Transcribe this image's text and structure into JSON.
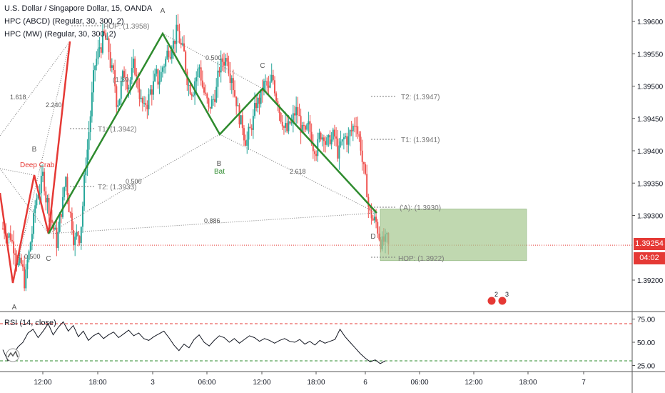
{
  "legend": {
    "symbol": "U.S. Dollar / Singapore Dollar, 15, OANDA",
    "hpc_abcd": "HPC (ABCD) (Regular, 30, 300, 2)",
    "hpc_mw": "HPC (MW) (Regular, 30, 300, 2)"
  },
  "rsi": {
    "label": "RSI (14, close)",
    "levels": {
      "upper": 70,
      "lower": 30
    },
    "ticks": [
      "75.00",
      "50.00",
      "25.00"
    ],
    "values": [
      42,
      30,
      36,
      45,
      50,
      60,
      64,
      55,
      62,
      70,
      58,
      66,
      72,
      62,
      68,
      56,
      62,
      52,
      57,
      60,
      54,
      58,
      61,
      55,
      59,
      63,
      57,
      60,
      54,
      52,
      56,
      59,
      62,
      55,
      47,
      41,
      48,
      44,
      53,
      58,
      50,
      46,
      52,
      57,
      55,
      50,
      54,
      49,
      53,
      57,
      55,
      51,
      54,
      52,
      49,
      52,
      54,
      51,
      50,
      53,
      48,
      51,
      47,
      52,
      49,
      51,
      53,
      64,
      56,
      50,
      44,
      38,
      33,
      29,
      31,
      27,
      30
    ]
  },
  "price_axis": {
    "ticks": [
      "1.39600",
      "1.39550",
      "1.39500",
      "1.39450",
      "1.39400",
      "1.39350",
      "1.39300",
      "1.39200"
    ],
    "current_price": "1.39254",
    "countdown": "04:02",
    "tag_color": "#e53935"
  },
  "time_axis": {
    "ticks": [
      "12:00",
      "18:00",
      "3",
      "06:00",
      "12:00",
      "18:00",
      "6",
      "06:00",
      "12:00",
      "18:00",
      "7"
    ]
  },
  "chart_data": {
    "type": "candlestick",
    "title": "U.S. Dollar / Singapore Dollar, 15, OANDA",
    "ylim": [
      1.3918,
      1.3965
    ],
    "close_path": [
      1.3928,
      1.3927,
      1.3925,
      1.3922,
      1.392,
      1.3924,
      1.3929,
      1.3934,
      1.3936,
      1.3932,
      1.3929,
      1.3926,
      1.3931,
      1.3936,
      1.393,
      1.3926,
      1.3927,
      1.3935,
      1.3943,
      1.3951,
      1.3955,
      1.3957,
      1.3956,
      1.3952,
      1.3948,
      1.395,
      1.3952,
      1.3951,
      1.3953,
      1.3949,
      1.3946,
      1.3948,
      1.395,
      1.3951,
      1.3953,
      1.3955,
      1.3957,
      1.3958,
      1.3956,
      1.3953,
      1.395,
      1.3951,
      1.3953,
      1.3949,
      1.3946,
      1.3948,
      1.3951,
      1.3954,
      1.3955,
      1.3952,
      1.3948,
      1.3944,
      1.3942,
      1.3943,
      1.3946,
      1.3948,
      1.395,
      1.3949,
      1.3951,
      1.3948,
      1.3945,
      1.3943,
      1.3944,
      1.3946,
      1.3944,
      1.3942,
      1.3943,
      1.3941,
      1.3942,
      1.3943,
      1.3941,
      1.3942,
      1.394,
      1.3941,
      1.3942,
      1.3943,
      1.3945,
      1.3941,
      1.3935,
      1.393,
      1.3929,
      1.3927,
      1.3926,
      1.3925
    ],
    "candle_colors": {
      "up": "#26a69a",
      "down": "#ef5350"
    },
    "patterns": [
      {
        "name": "Deep Crab",
        "color": "#e53935",
        "labels": [
          "A",
          "B",
          "C"
        ],
        "points": [
          [
            "x0",
            1.3923
          ],
          [
            "x1",
            1.3919
          ],
          [
            "x2",
            1.3936
          ],
          [
            "x3",
            1.3927
          ],
          [
            "x4",
            1.3937
          ]
        ]
      },
      {
        "name": "Bat",
        "color": "#2e8b2e",
        "labels": [
          "A",
          "B",
          "C",
          "D"
        ],
        "points": [
          [
            "x0",
            1.3927
          ],
          [
            "x1",
            1.3958
          ],
          [
            "x2",
            1.3942
          ],
          [
            "x3",
            1.395
          ],
          [
            "x4",
            1.393
          ]
        ]
      }
    ],
    "ratio_labels": [
      "1.618",
      "2.240",
      "0.500",
      "0.500",
      "2.618",
      "0.886",
      "0.500"
    ],
    "target_labels": {
      "t1_left": "T1: (1.3942)",
      "t2_left": "T2: (1.3933)",
      "t2_right": "T2: (1.3947)",
      "t1_right": "T1: (1.3941)",
      "hop_left": "HOP: (1.3958)",
      "xa": "('A): (1.3930)",
      "hop_right": "HOP: (1.3922)",
      "near_b": "(1.39"
    },
    "zone": {
      "top": 1.3931,
      "bottom": 1.3923,
      "color": "#a5c88f"
    },
    "events": [
      "2",
      "3"
    ],
    "grid": false
  }
}
